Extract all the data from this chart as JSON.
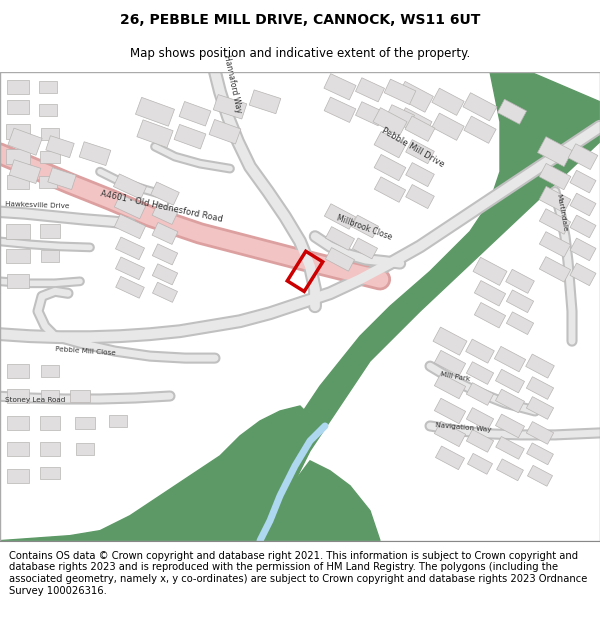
{
  "title_line1": "26, PEBBLE MILL DRIVE, CANNOCK, WS11 6UT",
  "title_line2": "Map shows position and indicative extent of the property.",
  "footer_text": "Contains OS data © Crown copyright and database right 2021. This information is subject to Crown copyright and database rights 2023 and is reproduced with the permission of HM Land Registry. The polygons (including the associated geometry, namely x, y co-ordinates) are subject to Crown copyright and database rights 2023 Ordnance Survey 100026316.",
  "map_bg": "#f2f0ed",
  "road_pink_fill": "#f2c4c4",
  "road_pink_outline": "#dda0a0",
  "road_gray_fill": "#e8e8e8",
  "road_gray_outline": "#c0c0c0",
  "green_area": "#5d9966",
  "building_color": "#e0dede",
  "building_outline": "#b8b4b4",
  "water_color": "#aed8f0",
  "property_color": "#cc0000",
  "title_fontsize": 10,
  "subtitle_fontsize": 8.5,
  "footer_fontsize": 7.2,
  "label_color": "#333333"
}
